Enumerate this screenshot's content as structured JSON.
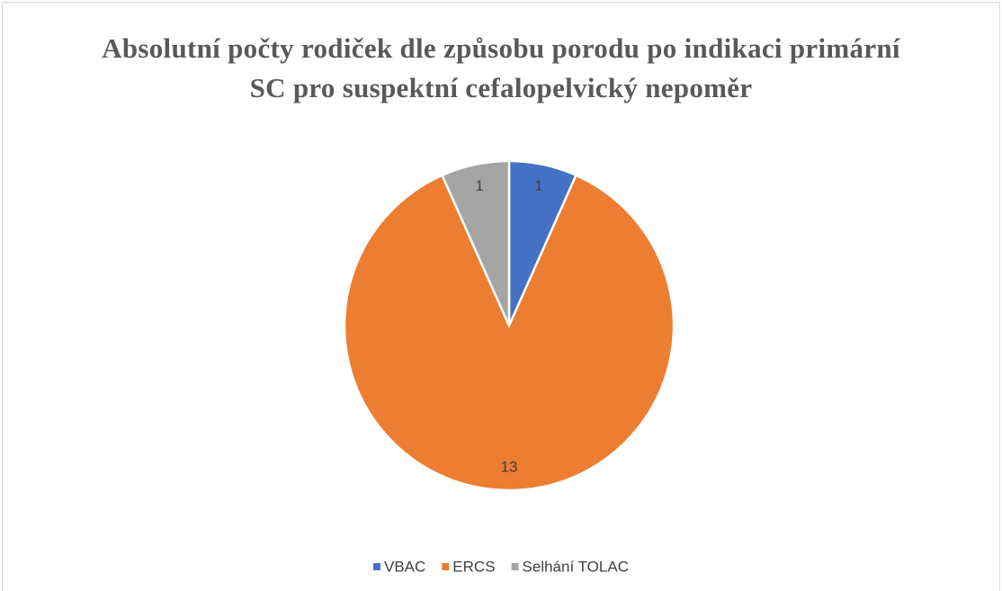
{
  "chart_data": {
    "type": "pie",
    "title": "Absolutní počty rodiček dle způsobu porodu po indikaci primární SC pro suspektní cefalopelvický nepoměr",
    "categories": [
      "VBAC",
      "ERCS",
      "Selhání TOLAC"
    ],
    "values": [
      1,
      13,
      1
    ],
    "colors": [
      "#4472c4",
      "#ed7d31",
      "#a5a5a5"
    ],
    "legend": "bottom"
  }
}
